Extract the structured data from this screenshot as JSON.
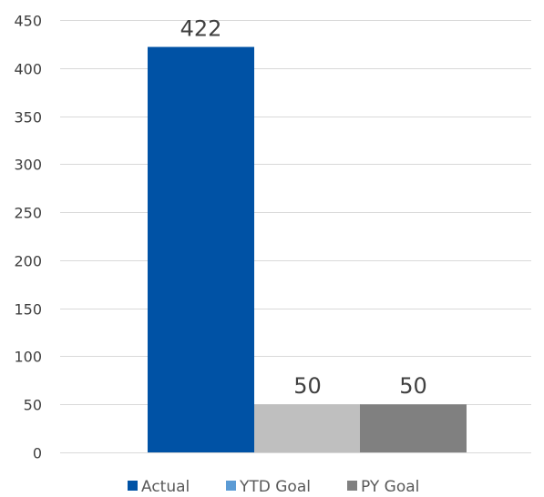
{
  "chart_data": {
    "type": "bar",
    "title": "",
    "xlabel": "",
    "ylabel": "",
    "ylim": [
      0,
      450
    ],
    "yticks": [
      0,
      50,
      100,
      150,
      200,
      250,
      300,
      350,
      400,
      450
    ],
    "grid": true,
    "legend_position": "bottom",
    "series": [
      {
        "name": "Actual",
        "value": 422,
        "label": "422",
        "color": "#0052A5"
      },
      {
        "name": "YTD Goal",
        "value": 50,
        "label": "50",
        "color": "#BFBFBF"
      },
      {
        "name": "PY Goal",
        "value": 50,
        "label": "50",
        "color": "#808080"
      }
    ],
    "legend": [
      {
        "name": "Actual",
        "color": "#0052A5"
      },
      {
        "name": "YTD Goal",
        "color": "#5B9BD5"
      },
      {
        "name": "PY Goal",
        "color": "#808080"
      }
    ]
  }
}
